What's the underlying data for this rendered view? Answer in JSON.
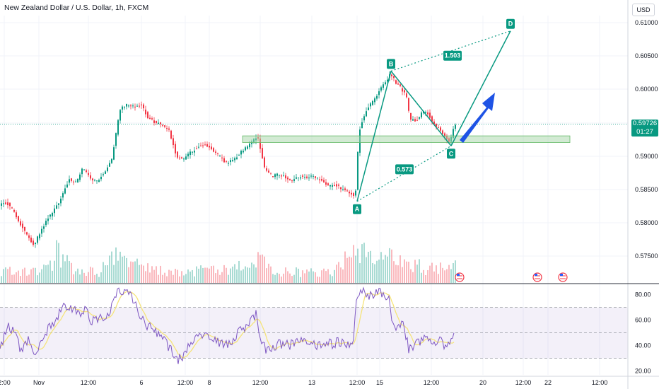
{
  "header": {
    "title": "New Zealand Dollar / U.S. Dollar, 1h, FXCM",
    "currency": "USD"
  },
  "price_tag": {
    "price": "0.59726",
    "countdown": "01:27"
  },
  "colors": {
    "up": "#089981",
    "down": "#f23645",
    "pattern": "#089981",
    "zone": "#a5d6a7",
    "arrow": "#1e53e5",
    "rsi": "#7e57c2",
    "rsi_ma": "#f5e47a"
  },
  "chart_data": {
    "type": "candlestick",
    "y_ticks": [
      "0.61000",
      "0.60500",
      "0.60000",
      "0.59500",
      "0.59000",
      "0.58500",
      "0.58000",
      "0.57500"
    ],
    "ylim": [
      0.5735,
      0.6135
    ],
    "x_ticks": [
      "2:00",
      "Nov",
      "12:00",
      "6",
      "12:00",
      "8",
      "12:00",
      "13",
      "12:00",
      "15",
      "12:00",
      "20",
      "12:00",
      "22",
      "12:00"
    ],
    "last_price": 0.59726,
    "close_path": [
      [
        0,
        0.5852
      ],
      [
        10,
        0.5855
      ],
      [
        20,
        0.5842
      ],
      [
        30,
        0.5822
      ],
      [
        40,
        0.5805
      ],
      [
        48,
        0.5792
      ],
      [
        58,
        0.5812
      ],
      [
        68,
        0.5832
      ],
      [
        78,
        0.5845
      ],
      [
        88,
        0.5865
      ],
      [
        98,
        0.589
      ],
      [
        108,
        0.5885
      ],
      [
        118,
        0.5908
      ],
      [
        128,
        0.589
      ],
      [
        138,
        0.5888
      ],
      [
        148,
        0.59
      ],
      [
        158,
        0.5918
      ],
      [
        164,
        0.5955
      ],
      [
        170,
        0.5995
      ],
      [
        180,
        0.6002
      ],
      [
        190,
        0.5998
      ],
      [
        200,
        0.6002
      ],
      [
        210,
        0.5982
      ],
      [
        220,
        0.5975
      ],
      [
        230,
        0.5972
      ],
      [
        240,
        0.5962
      ],
      [
        250,
        0.5925
      ],
      [
        260,
        0.592
      ],
      [
        270,
        0.593
      ],
      [
        280,
        0.5938
      ],
      [
        290,
        0.5942
      ],
      [
        300,
        0.5935
      ],
      [
        310,
        0.5925
      ],
      [
        320,
        0.5915
      ],
      [
        330,
        0.5918
      ],
      [
        340,
        0.593
      ],
      [
        350,
        0.5938
      ],
      [
        360,
        0.595
      ],
      [
        365,
        0.5952
      ],
      [
        370,
        0.5928
      ],
      [
        375,
        0.5905
      ],
      [
        385,
        0.5895
      ],
      [
        395,
        0.5898
      ],
      [
        405,
        0.5892
      ],
      [
        415,
        0.5888
      ],
      [
        425,
        0.5895
      ],
      [
        435,
        0.5892
      ],
      [
        445,
        0.5895
      ],
      [
        455,
        0.5888
      ],
      [
        465,
        0.588
      ],
      [
        475,
        0.5882
      ],
      [
        485,
        0.5875
      ],
      [
        495,
        0.587
      ],
      [
        503,
        0.5865
      ],
      [
        508,
        0.596
      ],
      [
        513,
        0.5978
      ],
      [
        520,
        0.5995
      ],
      [
        530,
        0.601
      ],
      [
        540,
        0.6028
      ],
      [
        548,
        0.604
      ],
      [
        553,
        0.6048
      ],
      [
        560,
        0.6035
      ],
      [
        565,
        0.603
      ],
      [
        575,
        0.6015
      ],
      [
        580,
        0.598
      ],
      [
        590,
        0.5978
      ],
      [
        598,
        0.5992
      ],
      [
        605,
        0.599
      ],
      [
        610,
        0.598
      ],
      [
        615,
        0.5972
      ],
      [
        625,
        0.5962
      ],
      [
        632,
        0.5952
      ],
      [
        637,
        0.5945
      ],
      [
        641,
        0.5962
      ],
      [
        643,
        0.5972
      ]
    ],
    "volume_profile": [
      [
        0,
        0.3
      ],
      [
        40,
        0.35
      ],
      [
        70,
        0.45
      ],
      [
        78,
        0.9
      ],
      [
        100,
        0.4
      ],
      [
        140,
        0.3
      ],
      [
        168,
        1.0
      ],
      [
        200,
        0.4
      ],
      [
        250,
        0.3
      ],
      [
        300,
        0.35
      ],
      [
        355,
        0.5
      ],
      [
        365,
        0.6
      ],
      [
        400,
        0.3
      ],
      [
        470,
        0.3
      ],
      [
        505,
        1.0
      ],
      [
        520,
        0.6
      ],
      [
        555,
        0.75
      ],
      [
        600,
        0.4
      ],
      [
        643,
        0.5
      ]
    ],
    "support_zone": {
      "top": 0.5955,
      "bottom": 0.5945,
      "x_start": 343,
      "x_end": 806
    },
    "pattern": {
      "points": [
        {
          "label": "A",
          "x": 505,
          "price": 0.5857
        },
        {
          "label": "B",
          "x": 553,
          "price": 0.6052
        },
        {
          "label": "C",
          "x": 638,
          "price": 0.594
        },
        {
          "label": "D",
          "x": 722,
          "price": 0.6112
        }
      ],
      "ratio_labels": [
        {
          "label": "0.573",
          "x": 572,
          "price": 0.5905
        },
        {
          "label": "1.503",
          "x": 640,
          "price": 0.6075
        }
      ]
    },
    "events": [
      650,
      760,
      796
    ],
    "rsi": {
      "ylim": [
        17,
        87
      ],
      "y_ticks": [
        "80.00",
        "60.00",
        "40.00",
        "20.00"
      ],
      "levels": [
        70,
        50,
        30
      ],
      "path": [
        [
          0,
          35
        ],
        [
          10,
          55
        ],
        [
          20,
          50
        ],
        [
          30,
          36
        ],
        [
          40,
          45
        ],
        [
          50,
          34
        ],
        [
          60,
          44
        ],
        [
          70,
          55
        ],
        [
          80,
          60
        ],
        [
          90,
          72
        ],
        [
          100,
          70
        ],
        [
          110,
          65
        ],
        [
          120,
          68
        ],
        [
          130,
          58
        ],
        [
          140,
          62
        ],
        [
          150,
          60
        ],
        [
          160,
          73
        ],
        [
          168,
          84
        ],
        [
          178,
          82
        ],
        [
          190,
          75
        ],
        [
          200,
          62
        ],
        [
          210,
          55
        ],
        [
          220,
          50
        ],
        [
          230,
          45
        ],
        [
          240,
          38
        ],
        [
          250,
          28
        ],
        [
          260,
          32
        ],
        [
          270,
          42
        ],
        [
          280,
          50
        ],
        [
          290,
          48
        ],
        [
          300,
          46
        ],
        [
          310,
          42
        ],
        [
          320,
          40
        ],
        [
          330,
          45
        ],
        [
          340,
          52
        ],
        [
          350,
          55
        ],
        [
          362,
          65
        ],
        [
          370,
          40
        ],
        [
          380,
          36
        ],
        [
          390,
          40
        ],
        [
          400,
          42
        ],
        [
          410,
          40
        ],
        [
          420,
          43
        ],
        [
          430,
          42
        ],
        [
          440,
          44
        ],
        [
          450,
          40
        ],
        [
          460,
          42
        ],
        [
          470,
          41
        ],
        [
          480,
          43
        ],
        [
          490,
          39
        ],
        [
          500,
          45
        ],
        [
          505,
          80
        ],
        [
          512,
          82
        ],
        [
          520,
          80
        ],
        [
          530,
          80
        ],
        [
          540,
          82
        ],
        [
          550,
          78
        ],
        [
          555,
          60
        ],
        [
          560,
          55
        ],
        [
          570,
          58
        ],
        [
          578,
          38
        ],
        [
          590,
          42
        ],
        [
          600,
          46
        ],
        [
          610,
          42
        ],
        [
          620,
          44
        ],
        [
          630,
          40
        ],
        [
          643,
          48
        ]
      ]
    }
  }
}
